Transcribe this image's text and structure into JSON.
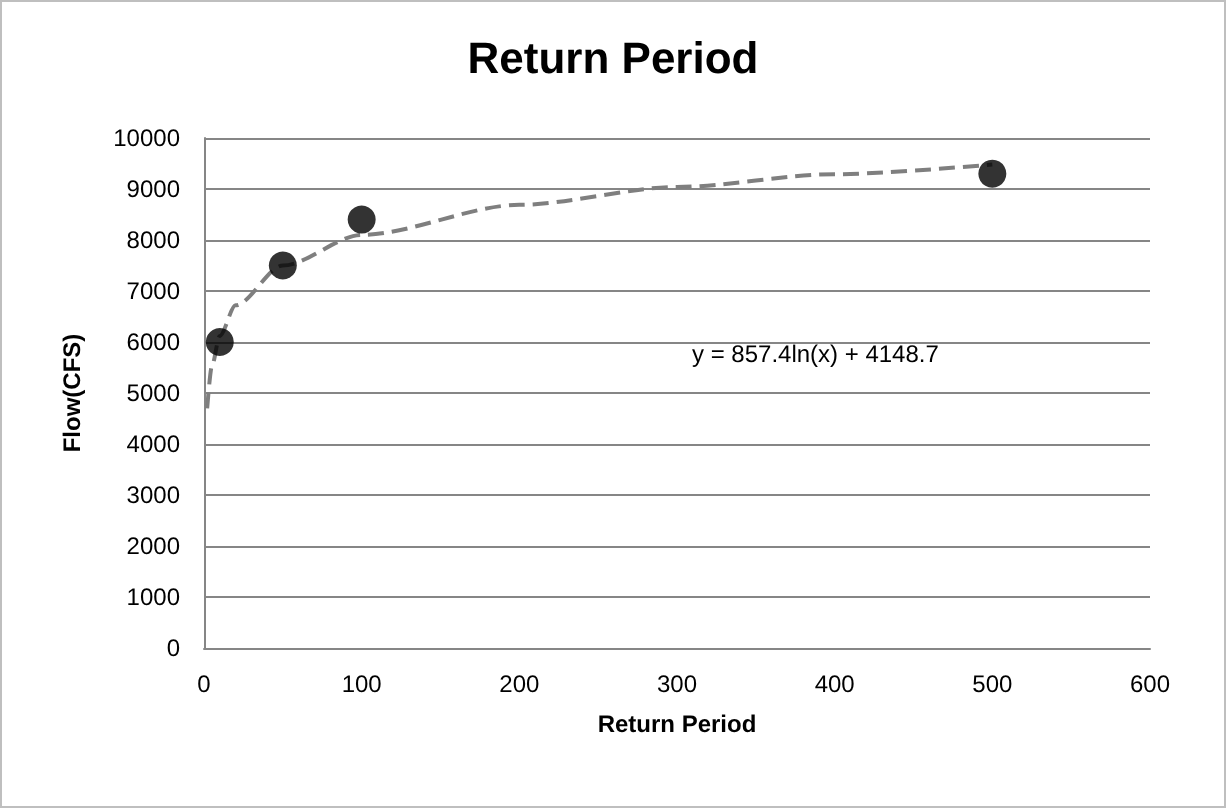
{
  "chart_data": {
    "type": "scatter",
    "title": "Return Period",
    "xlabel": "Return Period",
    "ylabel": "Flow(CFS)",
    "series": [
      {
        "color": "#000000",
        "marker": "circle",
        "x": [
          10,
          50,
          100,
          500
        ],
        "values": [
          6000,
          7500,
          8400,
          9300
        ]
      },
      {
        "type": "line",
        "color": "#7f7f7f",
        "line_style": "dashed",
        "marker": "none",
        "x": [
          2,
          5,
          10,
          20,
          50,
          100,
          200,
          300,
          400,
          500
        ],
        "values": [
          4700,
          5530,
          6120,
          6720,
          7500,
          8100,
          8690,
          9040,
          9290,
          9480
        ]
      }
    ],
    "annotations": [
      "y = 857.4ln(x) + 4148.7"
    ],
    "xlim": [
      0,
      600
    ],
    "xticks": [
      0,
      100,
      200,
      300,
      400,
      500,
      600
    ],
    "ylim": [
      0,
      10000
    ],
    "yticks": [
      0,
      1000,
      2000,
      3000,
      4000,
      5000,
      6000,
      7000,
      8000,
      9000,
      10000
    ],
    "grid": "y"
  }
}
